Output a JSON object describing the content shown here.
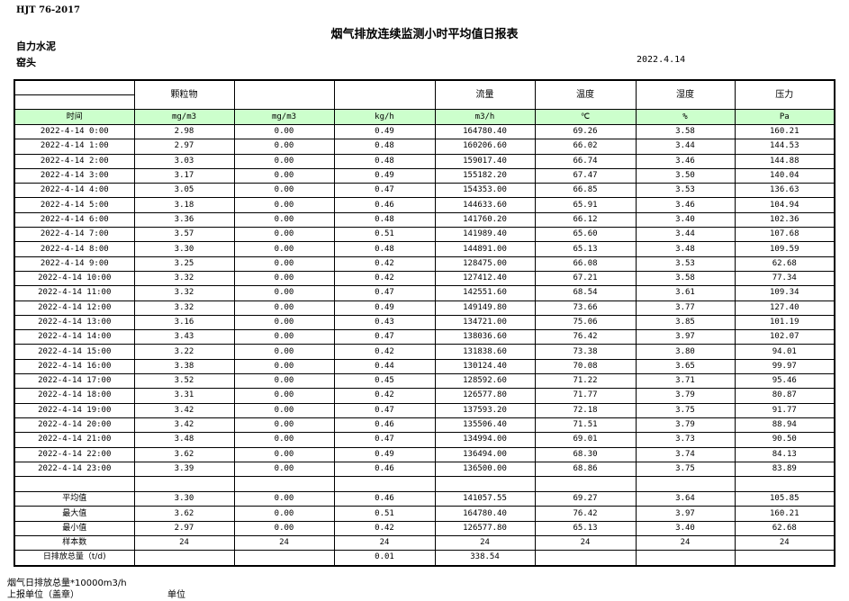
{
  "header": {
    "standard": "HJT  76-2017",
    "title": "烟气排放连续监测小时平均值日报表",
    "company": "自力水泥",
    "source": "窑头",
    "date": "2022.4.14"
  },
  "columns": [
    "",
    "颗粒物",
    "",
    "",
    "流量",
    "温度",
    "湿度",
    "压力"
  ],
  "units": [
    "时间",
    "mg/m3",
    "mg/m3",
    "kg/h",
    "m3/h",
    "℃",
    "%",
    "Pa"
  ],
  "rows": [
    [
      "2022-4-14 0:00",
      "2.98",
      "0.00",
      "0.49",
      "164780.40",
      "69.26",
      "3.58",
      "160.21"
    ],
    [
      "2022-4-14 1:00",
      "2.97",
      "0.00",
      "0.48",
      "160206.60",
      "66.02",
      "3.44",
      "144.53"
    ],
    [
      "2022-4-14 2:00",
      "3.03",
      "0.00",
      "0.48",
      "159017.40",
      "66.74",
      "3.46",
      "144.88"
    ],
    [
      "2022-4-14 3:00",
      "3.17",
      "0.00",
      "0.49",
      "155182.20",
      "67.47",
      "3.50",
      "140.04"
    ],
    [
      "2022-4-14 4:00",
      "3.05",
      "0.00",
      "0.47",
      "154353.00",
      "66.85",
      "3.53",
      "136.63"
    ],
    [
      "2022-4-14 5:00",
      "3.18",
      "0.00",
      "0.46",
      "144633.60",
      "65.91",
      "3.46",
      "104.94"
    ],
    [
      "2022-4-14 6:00",
      "3.36",
      "0.00",
      "0.48",
      "141760.20",
      "66.12",
      "3.40",
      "102.36"
    ],
    [
      "2022-4-14 7:00",
      "3.57",
      "0.00",
      "0.51",
      "141989.40",
      "65.60",
      "3.44",
      "107.68"
    ],
    [
      "2022-4-14 8:00",
      "3.30",
      "0.00",
      "0.48",
      "144891.00",
      "65.13",
      "3.48",
      "109.59"
    ],
    [
      "2022-4-14 9:00",
      "3.25",
      "0.00",
      "0.42",
      "128475.00",
      "66.08",
      "3.53",
      "62.68"
    ],
    [
      "2022-4-14 10:00",
      "3.32",
      "0.00",
      "0.42",
      "127412.40",
      "67.21",
      "3.58",
      "77.34"
    ],
    [
      "2022-4-14 11:00",
      "3.32",
      "0.00",
      "0.47",
      "142551.60",
      "68.54",
      "3.61",
      "109.34"
    ],
    [
      "2022-4-14 12:00",
      "3.32",
      "0.00",
      "0.49",
      "149149.80",
      "73.66",
      "3.77",
      "127.40"
    ],
    [
      "2022-4-14 13:00",
      "3.16",
      "0.00",
      "0.43",
      "134721.00",
      "75.06",
      "3.85",
      "101.19"
    ],
    [
      "2022-4-14 14:00",
      "3.43",
      "0.00",
      "0.47",
      "138036.60",
      "76.42",
      "3.97",
      "102.07"
    ],
    [
      "2022-4-14 15:00",
      "3.22",
      "0.00",
      "0.42",
      "131838.60",
      "73.38",
      "3.80",
      "94.01"
    ],
    [
      "2022-4-14 16:00",
      "3.38",
      "0.00",
      "0.44",
      "130124.40",
      "70.08",
      "3.65",
      "99.97"
    ],
    [
      "2022-4-14 17:00",
      "3.52",
      "0.00",
      "0.45",
      "128592.60",
      "71.22",
      "3.71",
      "95.46"
    ],
    [
      "2022-4-14 18:00",
      "3.31",
      "0.00",
      "0.42",
      "126577.80",
      "71.77",
      "3.79",
      "80.87"
    ],
    [
      "2022-4-14 19:00",
      "3.42",
      "0.00",
      "0.47",
      "137593.20",
      "72.18",
      "3.75",
      "91.77"
    ],
    [
      "2022-4-14 20:00",
      "3.42",
      "0.00",
      "0.46",
      "135506.40",
      "71.51",
      "3.79",
      "88.94"
    ],
    [
      "2022-4-14 21:00",
      "3.48",
      "0.00",
      "0.47",
      "134994.00",
      "69.01",
      "3.73",
      "90.50"
    ],
    [
      "2022-4-14 22:00",
      "3.62",
      "0.00",
      "0.49",
      "136494.00",
      "68.30",
      "3.74",
      "84.13"
    ],
    [
      "2022-4-14 23:00",
      "3.39",
      "0.00",
      "0.46",
      "136500.00",
      "68.86",
      "3.75",
      "83.89"
    ]
  ],
  "stats": [
    [
      "平均值",
      "3.30",
      "0.00",
      "0.46",
      "141057.55",
      "69.27",
      "3.64",
      "105.85"
    ],
    [
      "最大值",
      "3.62",
      "0.00",
      "0.51",
      "164780.40",
      "76.42",
      "3.97",
      "160.21"
    ],
    [
      "最小值",
      "2.97",
      "0.00",
      "0.42",
      "126577.80",
      "65.13",
      "3.40",
      "62.68"
    ],
    [
      "样本数",
      "24",
      "24",
      "24",
      "24",
      "24",
      "24",
      "24"
    ],
    [
      "日排放总量（t/d)",
      "",
      "",
      "0.01",
      "338.54",
      "",
      "",
      ""
    ]
  ],
  "footer": {
    "note": "烟气日排放总量*10000m3/h",
    "reporter_label": "上报单位（盖章）",
    "unit_label": "单位"
  }
}
